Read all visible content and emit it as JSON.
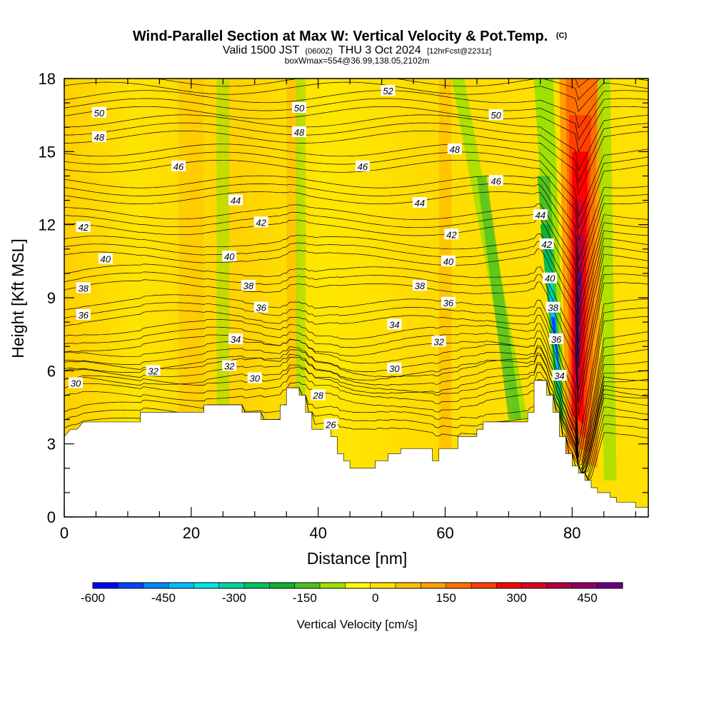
{
  "chart_data": {
    "type": "heatmap",
    "title": "Wind-Parallel Section at Max W: Vertical Velocity & Pot.Temp.",
    "title_mark": "(C)",
    "subtitle_parts": [
      "Valid 1500 JST",
      "(0600Z)",
      "THU 3 Oct 2024",
      "[12hrFcst@2231z]"
    ],
    "subtitle2": "boxWmax=554@36.99,138.05,2102m",
    "xlabel": "Distance [nm]",
    "ylabel": "Height [Kft MSL]",
    "xlim": [
      0,
      92
    ],
    "ylim": [
      0,
      18
    ],
    "x_ticks": [
      "0",
      "20",
      "40",
      "60",
      "80"
    ],
    "y_ticks": [
      "0",
      "3",
      "6",
      "9",
      "12",
      "15",
      "18"
    ],
    "colorbar": {
      "label": "Vertical Velocity [cm/s]",
      "tick_labels": [
        "-600",
        "-450",
        "-300",
        "-150",
        "0",
        "150",
        "300",
        "450"
      ],
      "colors": [
        "#0000ff",
        "#0044ff",
        "#0088ff",
        "#00bbff",
        "#00e5e5",
        "#00d2a0",
        "#00c060",
        "#10b030",
        "#50c020",
        "#a0e000",
        "#ffff00",
        "#ffe000",
        "#ffc000",
        "#ffa000",
        "#ff7000",
        "#ff4000",
        "#ff0000",
        "#dd0020",
        "#b00040",
        "#900060",
        "#6a0080"
      ]
    },
    "terrain_kft": [
      [
        0,
        3.3
      ],
      [
        1,
        3.6
      ],
      [
        2,
        3.6
      ],
      [
        3,
        3.9
      ],
      [
        12,
        3.9
      ],
      [
        12,
        4.3
      ],
      [
        22,
        4.3
      ],
      [
        22,
        4.6
      ],
      [
        28,
        4.6
      ],
      [
        28,
        4.3
      ],
      [
        31,
        4.3
      ],
      [
        31,
        4.0
      ],
      [
        34,
        4.0
      ],
      [
        34,
        4.6
      ],
      [
        35,
        4.6
      ],
      [
        35,
        5.3
      ],
      [
        37,
        5.3
      ],
      [
        37,
        5.0
      ],
      [
        38,
        5.0
      ],
      [
        38,
        4.3
      ],
      [
        39,
        4.3
      ],
      [
        39,
        3.6
      ],
      [
        42,
        3.6
      ],
      [
        42,
        3.3
      ],
      [
        43,
        3.3
      ],
      [
        43,
        2.6
      ],
      [
        44,
        2.6
      ],
      [
        44,
        2.3
      ],
      [
        45,
        2.3
      ],
      [
        45,
        2.0
      ],
      [
        49,
        2.0
      ],
      [
        49,
        2.3
      ],
      [
        51,
        2.3
      ],
      [
        51,
        2.6
      ],
      [
        53,
        2.6
      ],
      [
        53,
        2.8
      ],
      [
        58,
        2.8
      ],
      [
        58,
        2.3
      ],
      [
        59,
        2.3
      ],
      [
        59,
        2.8
      ],
      [
        62,
        2.8
      ],
      [
        62,
        3.3
      ],
      [
        65,
        3.3
      ],
      [
        65,
        3.6
      ],
      [
        66,
        3.6
      ],
      [
        66,
        3.9
      ],
      [
        73,
        3.9
      ],
      [
        73,
        4.3
      ],
      [
        74,
        4.3
      ],
      [
        74,
        5.6
      ],
      [
        76,
        5.6
      ],
      [
        76,
        5.0
      ],
      [
        77,
        5.0
      ],
      [
        77,
        4.3
      ],
      [
        78,
        4.3
      ],
      [
        78,
        3.3
      ],
      [
        79,
        3.3
      ],
      [
        79,
        2.6
      ],
      [
        80,
        2.6
      ],
      [
        80,
        2.1
      ],
      [
        81,
        2.1
      ],
      [
        81,
        1.8
      ],
      [
        82,
        1.8
      ],
      [
        82,
        1.5
      ],
      [
        83,
        1.5
      ],
      [
        83,
        1.2
      ],
      [
        84,
        1.2
      ],
      [
        84,
        1.0
      ],
      [
        86,
        1.0
      ],
      [
        86,
        0.8
      ],
      [
        87,
        0.8
      ],
      [
        87,
        0.6
      ],
      [
        90,
        0.6
      ],
      [
        90,
        0.4
      ],
      [
        92,
        0.4
      ]
    ],
    "updraft_max_x_nm": 81,
    "downdraft_max_x_nm": 77,
    "theta_contours": [
      {
        "label": "26",
        "base_kft": 3.7
      },
      {
        "label": "28",
        "base_kft": 4.8
      },
      {
        "label": "30",
        "base_kft": 5.5
      },
      {
        "label": "32",
        "base_kft": 6.1
      },
      {
        "label": "34",
        "base_kft": 7.0
      },
      {
        "label": "36",
        "base_kft": 8.1
      },
      {
        "label": "38",
        "base_kft": 9.4
      },
      {
        "label": "40",
        "base_kft": 10.6
      },
      {
        "label": "42",
        "base_kft": 11.8
      },
      {
        "label": "44",
        "base_kft": 13.1
      },
      {
        "label": "46",
        "base_kft": 14.4
      },
      {
        "label": "48",
        "base_kft": 15.6
      },
      {
        "label": "50",
        "base_kft": 16.6
      },
      {
        "label": "52",
        "base_kft": 17.6
      }
    ],
    "contour_labels": [
      {
        "t": "30",
        "x": 1.8,
        "y": 5.5
      },
      {
        "t": "32",
        "x": 14,
        "y": 6.0
      },
      {
        "t": "32",
        "x": 26,
        "y": 6.2
      },
      {
        "t": "30",
        "x": 30,
        "y": 5.7
      },
      {
        "t": "28",
        "x": 40,
        "y": 5.0
      },
      {
        "t": "26",
        "x": 42,
        "y": 3.8
      },
      {
        "t": "30",
        "x": 52,
        "y": 6.1
      },
      {
        "t": "36",
        "x": 3,
        "y": 8.3
      },
      {
        "t": "38",
        "x": 3,
        "y": 9.4
      },
      {
        "t": "40",
        "x": 6.5,
        "y": 10.6
      },
      {
        "t": "42",
        "x": 3,
        "y": 11.9
      },
      {
        "t": "48",
        "x": 5.5,
        "y": 15.6
      },
      {
        "t": "50",
        "x": 5.5,
        "y": 16.6
      },
      {
        "t": "46",
        "x": 18,
        "y": 14.4
      },
      {
        "t": "44",
        "x": 27,
        "y": 13.0
      },
      {
        "t": "42",
        "x": 31,
        "y": 12.1
      },
      {
        "t": "40",
        "x": 26,
        "y": 10.7
      },
      {
        "t": "38",
        "x": 29,
        "y": 9.5
      },
      {
        "t": "36",
        "x": 31,
        "y": 8.6
      },
      {
        "t": "34",
        "x": 27,
        "y": 7.3
      },
      {
        "t": "34",
        "x": 52,
        "y": 7.9
      },
      {
        "t": "32",
        "x": 59,
        "y": 7.2
      },
      {
        "t": "50",
        "x": 37,
        "y": 16.8
      },
      {
        "t": "48",
        "x": 37,
        "y": 15.8
      },
      {
        "t": "52",
        "x": 51,
        "y": 17.5
      },
      {
        "t": "46",
        "x": 47,
        "y": 14.4
      },
      {
        "t": "44",
        "x": 56,
        "y": 12.9
      },
      {
        "t": "38",
        "x": 56,
        "y": 9.5
      },
      {
        "t": "36",
        "x": 60.5,
        "y": 8.8
      },
      {
        "t": "40",
        "x": 60.5,
        "y": 10.5
      },
      {
        "t": "42",
        "x": 61,
        "y": 11.6
      },
      {
        "t": "48",
        "x": 61.5,
        "y": 15.1
      },
      {
        "t": "46",
        "x": 68,
        "y": 13.8
      },
      {
        "t": "50",
        "x": 68,
        "y": 16.5
      },
      {
        "t": "44",
        "x": 75,
        "y": 12.4
      },
      {
        "t": "42",
        "x": 76,
        "y": 11.2
      },
      {
        "t": "40",
        "x": 76.5,
        "y": 9.8
      },
      {
        "t": "38",
        "x": 77,
        "y": 8.6
      },
      {
        "t": "36",
        "x": 77.5,
        "y": 7.3
      },
      {
        "t": "34",
        "x": 78,
        "y": 5.8
      }
    ]
  }
}
